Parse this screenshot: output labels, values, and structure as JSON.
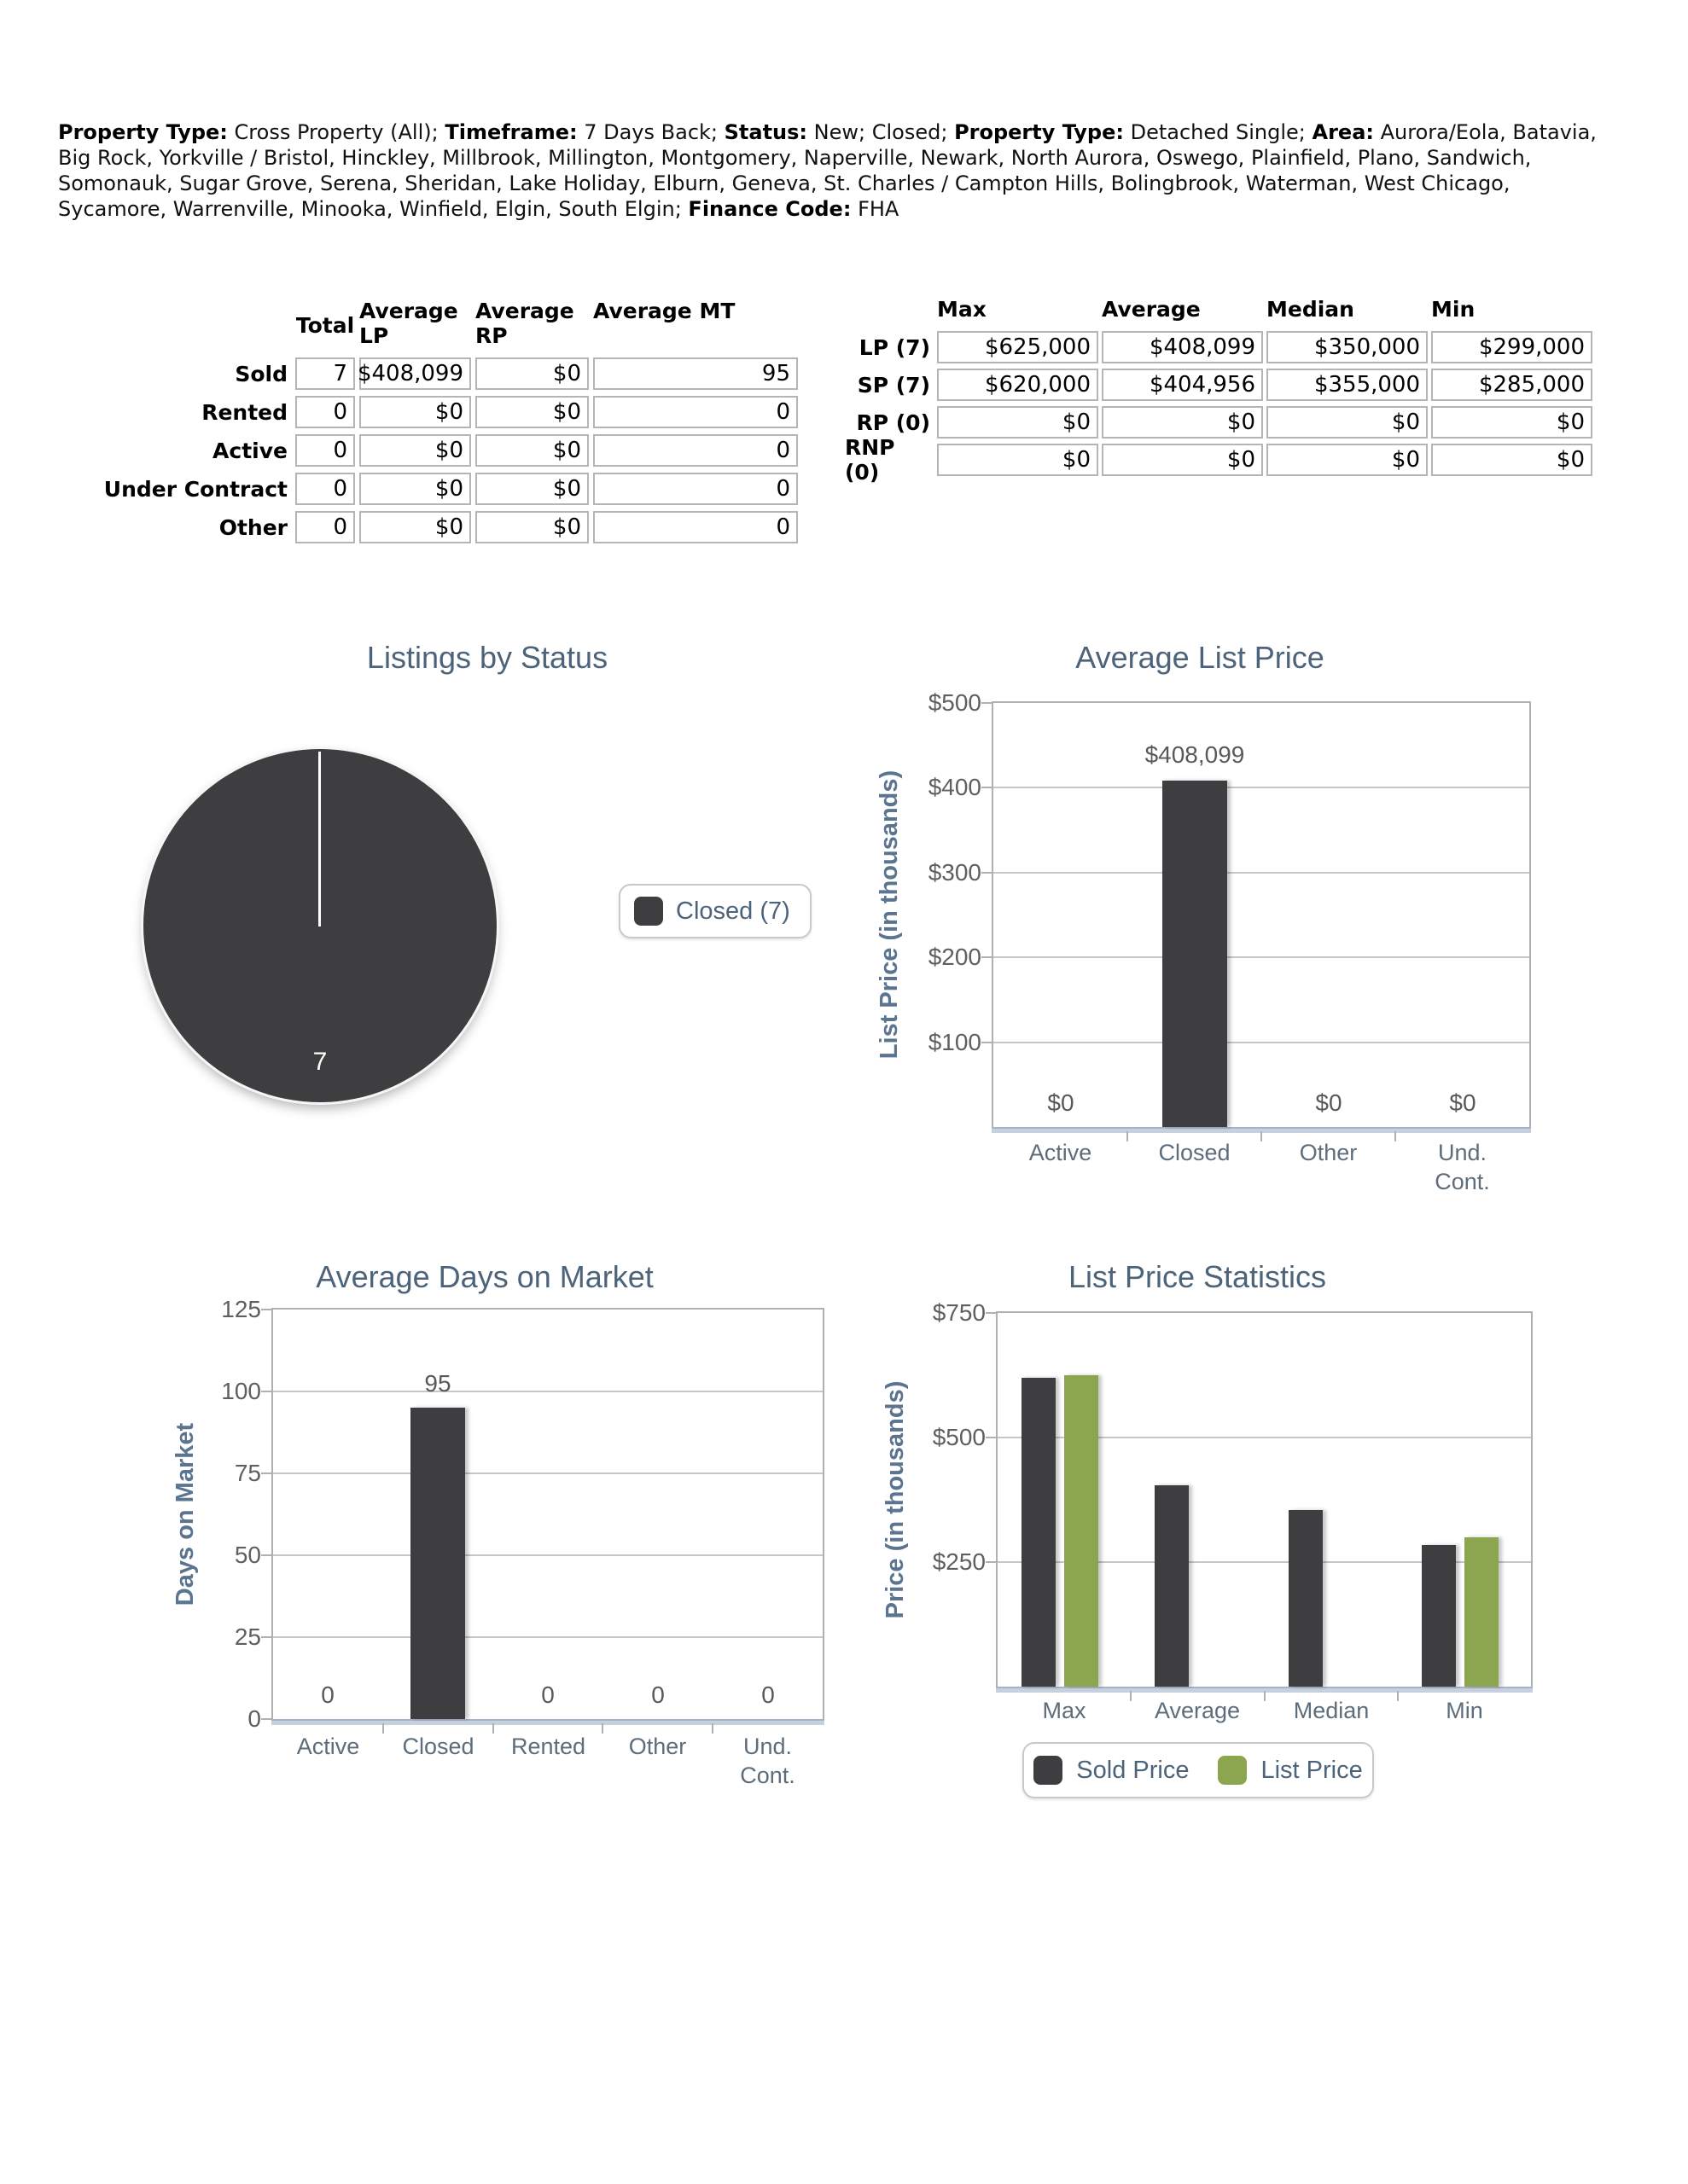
{
  "header": {
    "segments": [
      {
        "label": "Property Type:",
        "text": " Cross Property (All); "
      },
      {
        "label": "Timeframe:",
        "text": " 7 Days Back; "
      },
      {
        "label": "Status:",
        "text": " New; Closed; "
      },
      {
        "label": "Property Type:",
        "text": " Detached Single; "
      },
      {
        "label": "Area:",
        "text": " Aurora/Eola, Batavia, Big Rock, Yorkville / Bristol, Hinckley, Millbrook, Millington, Montgomery, Naperville, Newark, North Aurora, Oswego, Plainfield, Plano, Sandwich, Somonauk, Sugar Grove, Serena, Sheridan, Lake Holiday, Elburn, Geneva, St. Charles / Campton Hills, Bolingbrook, Waterman, West Chicago, Sycamore, Warrenville, Minooka, Winfield, Elgin, South Elgin; "
      },
      {
        "label": "Finance Code:",
        "text": " FHA"
      }
    ]
  },
  "summary_table": {
    "columns": [
      "Total",
      "Average LP",
      "Average RP",
      "Average MT"
    ],
    "rows": [
      {
        "label": "Sold",
        "values": [
          "7",
          "$408,099",
          "$0",
          "95"
        ]
      },
      {
        "label": "Rented",
        "values": [
          "0",
          "$0",
          "$0",
          "0"
        ]
      },
      {
        "label": "Active",
        "values": [
          "0",
          "$0",
          "$0",
          "0"
        ]
      },
      {
        "label": "Under Contract",
        "values": [
          "0",
          "$0",
          "$0",
          "0"
        ]
      },
      {
        "label": "Other",
        "values": [
          "0",
          "$0",
          "$0",
          "0"
        ]
      }
    ]
  },
  "stats_table": {
    "columns": [
      "Max",
      "Average",
      "Median",
      "Min"
    ],
    "rows": [
      {
        "label": "LP (7)",
        "values": [
          "$625,000",
          "$408,099",
          "$350,000",
          "$299,000"
        ]
      },
      {
        "label": "SP (7)",
        "values": [
          "$620,000",
          "$404,956",
          "$355,000",
          "$285,000"
        ]
      },
      {
        "label": "RP (0)",
        "values": [
          "$0",
          "$0",
          "$0",
          "$0"
        ]
      },
      {
        "label": "RNP (0)",
        "values": [
          "$0",
          "$0",
          "$0",
          "$0"
        ]
      }
    ]
  },
  "chart_data": [
    {
      "id": "listings-by-status",
      "type": "pie",
      "title": "Listings by Status",
      "slices": [
        {
          "label": "Closed",
          "value": 7,
          "color": "#3e3d3f"
        }
      ],
      "value_label": "7",
      "legend": [
        {
          "label": "Closed (7)",
          "color": "#3e3d3f"
        }
      ],
      "legend_position": "right"
    },
    {
      "id": "average-list-price",
      "type": "bar",
      "title": "Average List Price",
      "ylabel": "List Price (in thousands)",
      "ylim": [
        0,
        500000
      ],
      "yticks": [
        {
          "v": 100000,
          "label": "$100"
        },
        {
          "v": 200000,
          "label": "$200"
        },
        {
          "v": 300000,
          "label": "$300"
        },
        {
          "v": 400000,
          "label": "$400"
        },
        {
          "v": 500000,
          "label": "$500"
        }
      ],
      "categories": [
        "Active",
        "Closed",
        "Other",
        "Und.\nCont."
      ],
      "values": [
        0,
        408099,
        0,
        0
      ],
      "value_labels": [
        "$0",
        "$408,099",
        "$0",
        "$0"
      ],
      "bar_color": "#3e3d3f",
      "grid": true
    },
    {
      "id": "average-days-on-market",
      "type": "bar",
      "title": "Average Days on Market",
      "ylabel": "Days on Market",
      "ylim": [
        0,
        125
      ],
      "yticks": [
        {
          "v": 0,
          "label": "0"
        },
        {
          "v": 25,
          "label": "25"
        },
        {
          "v": 50,
          "label": "50"
        },
        {
          "v": 75,
          "label": "75"
        },
        {
          "v": 100,
          "label": "100"
        },
        {
          "v": 125,
          "label": "125"
        }
      ],
      "categories": [
        "Active",
        "Closed",
        "Rented",
        "Other",
        "Und.\nCont."
      ],
      "values": [
        0,
        95,
        0,
        0,
        0
      ],
      "value_labels": [
        "0",
        "95",
        "0",
        "0",
        "0"
      ],
      "bar_color": "#3e3d3f",
      "grid": true
    },
    {
      "id": "list-price-statistics",
      "type": "grouped_bar",
      "title": "List Price Statistics",
      "ylabel": "Price (in thousands)",
      "ylim": [
        0,
        750000
      ],
      "yticks": [
        {
          "v": 250000,
          "label": "$250"
        },
        {
          "v": 500000,
          "label": "$500"
        },
        {
          "v": 750000,
          "label": "$750"
        }
      ],
      "categories": [
        "Max",
        "Average",
        "Median",
        "Min"
      ],
      "series": [
        {
          "name": "Sold Price",
          "color": "#3e3d3f",
          "values": [
            620000,
            404956,
            355000,
            285000
          ]
        },
        {
          "name": "List Price",
          "color": "#8ca64f",
          "values": [
            625000,
            null,
            null,
            299000
          ]
        }
      ],
      "legend": [
        "Sold Price",
        "List Price"
      ],
      "legend_position": "bottom",
      "grid": true
    }
  ]
}
